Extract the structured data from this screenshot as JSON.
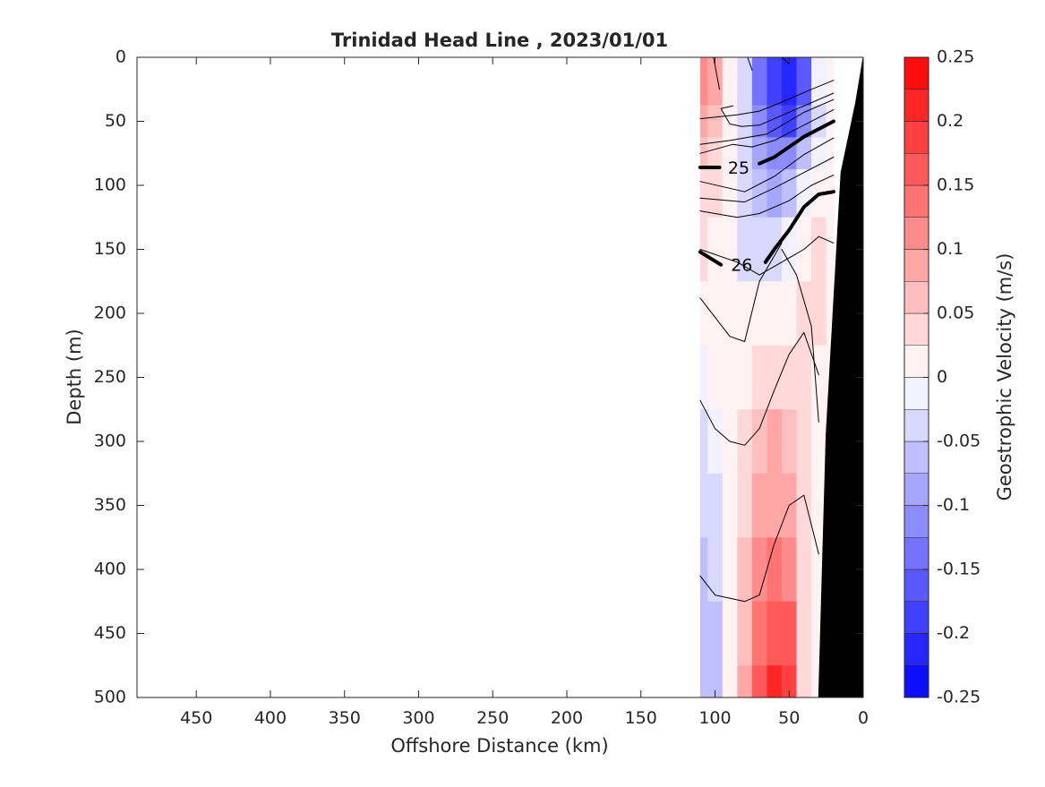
{
  "chart_data": {
    "type": "heatmap",
    "title": "Trinidad Head Line , 2023/01/01",
    "xlabel": "Offshore Distance (km)",
    "ylabel": "Depth (m)",
    "xlim": [
      490,
      0
    ],
    "ylim": [
      0,
      500
    ],
    "x_reversed": true,
    "y_reversed": true,
    "x_ticks": [
      "450",
      "400",
      "350",
      "300",
      "250",
      "200",
      "150",
      "100",
      "50",
      "0"
    ],
    "y_ticks": [
      "0",
      "50",
      "100",
      "150",
      "200",
      "250",
      "300",
      "350",
      "400",
      "450",
      "500"
    ],
    "colorbar": {
      "label": "Geostrophic Velocity (m/s)",
      "min": -0.25,
      "max": 0.25,
      "levels": 20,
      "ticks": [
        "0.25",
        "0.2",
        "0.15",
        "0.1",
        "0.05",
        "0",
        "-0.05",
        "-0.1",
        "-0.15",
        "-0.2",
        "-0.25"
      ],
      "colors": {
        "negative": "#0000ff",
        "zero": "#ffffff",
        "positive": "#ff0000"
      }
    },
    "velocity_field": {
      "x_km": [
        110,
        100,
        90,
        80,
        70,
        60,
        50,
        40,
        30,
        20
      ],
      "depth_m": [
        0,
        25,
        50,
        75,
        100,
        150,
        200,
        250,
        300,
        350,
        400,
        450,
        500
      ],
      "values": [
        [
          0.12,
          0.08,
          0.02,
          -0.05,
          -0.14,
          -0.19,
          -0.21,
          -0.16,
          -0.02,
          0.0
        ],
        [
          0.12,
          0.08,
          0.02,
          -0.05,
          -0.14,
          -0.19,
          -0.21,
          -0.16,
          -0.02,
          0.0
        ],
        [
          0.1,
          0.07,
          0.02,
          -0.04,
          -0.11,
          -0.16,
          -0.18,
          -0.11,
          -0.03,
          0.0
        ],
        [
          0.07,
          0.05,
          0.01,
          -0.04,
          -0.09,
          -0.12,
          -0.11,
          -0.06,
          -0.01,
          0.0
        ],
        [
          0.05,
          0.04,
          0.0,
          -0.04,
          -0.07,
          -0.08,
          -0.06,
          -0.02,
          0.0,
          0.0
        ],
        [
          0.03,
          0.02,
          0.0,
          -0.03,
          -0.04,
          -0.04,
          -0.02,
          0.01,
          0.03,
          0.0
        ],
        [
          0.0,
          0.0,
          0.0,
          0.0,
          0.0,
          0.01,
          0.02,
          0.03,
          0.04,
          0.0
        ],
        [
          -0.01,
          0.0,
          0.0,
          0.02,
          0.04,
          0.05,
          0.05,
          0.03,
          0.0,
          0.0
        ],
        [
          -0.03,
          -0.02,
          0.0,
          0.04,
          0.07,
          0.08,
          0.07,
          0.03,
          0.0,
          0.0
        ],
        [
          -0.05,
          -0.04,
          0.0,
          0.05,
          0.09,
          0.1,
          0.08,
          0.03,
          0.0,
          0.0
        ],
        [
          -0.06,
          -0.05,
          0.0,
          0.06,
          0.11,
          0.13,
          0.12,
          0.04,
          0.0,
          0.0
        ],
        [
          -0.06,
          -0.06,
          0.0,
          0.07,
          0.13,
          0.16,
          0.15,
          0.05,
          0.0,
          0.0
        ],
        [
          -0.07,
          -0.06,
          0.0,
          0.08,
          0.15,
          0.2,
          0.18,
          0.05,
          0.0,
          0.0
        ]
      ]
    },
    "density_contours": [
      {
        "label": "",
        "bold": false,
        "points": [
          [
            101,
            0
          ],
          [
            97,
            25
          ]
        ]
      },
      {
        "label": "",
        "bold": false,
        "points": [
          [
            78,
            0
          ],
          [
            75,
            10
          ]
        ]
      },
      {
        "label": "",
        "bold": false,
        "points": [
          [
            55,
            0
          ],
          [
            50,
            5
          ]
        ]
      },
      {
        "label": "",
        "bold": false,
        "points": [
          [
            20,
            18
          ],
          [
            35,
            25
          ],
          [
            55,
            35
          ],
          [
            70,
            42
          ],
          [
            85,
            45
          ],
          [
            110,
            48
          ]
        ]
      },
      {
        "label": "",
        "bold": false,
        "points": [
          [
            20,
            28
          ],
          [
            40,
            38
          ],
          [
            60,
            48
          ],
          [
            70,
            53
          ],
          [
            82,
            54
          ],
          [
            90,
            52
          ],
          [
            96,
            40
          ],
          [
            88,
            38
          ]
        ]
      },
      {
        "label": "",
        "bold": false,
        "points": [
          [
            20,
            33
          ],
          [
            40,
            43
          ],
          [
            65,
            60
          ],
          [
            90,
            65
          ],
          [
            110,
            68
          ]
        ]
      },
      {
        "label": "",
        "bold": false,
        "points": [
          [
            20,
            41
          ],
          [
            40,
            53
          ],
          [
            60,
            65
          ],
          [
            75,
            70
          ],
          [
            88,
            68
          ],
          [
            110,
            75
          ]
        ]
      },
      {
        "label": "25",
        "bold": true,
        "points": [
          [
            20,
            50
          ],
          [
            40,
            62
          ],
          [
            60,
            78
          ],
          [
            70,
            83
          ]
        ],
        "label_at": [
          84,
          87
        ]
      },
      {
        "label": "",
        "bold": true,
        "points": [
          [
            97,
            86
          ],
          [
            110,
            86
          ]
        ]
      },
      {
        "label": "",
        "bold": false,
        "points": [
          [
            20,
            63
          ],
          [
            40,
            76
          ],
          [
            60,
            93
          ],
          [
            80,
            105
          ],
          [
            110,
            97
          ]
        ]
      },
      {
        "label": "",
        "bold": false,
        "points": [
          [
            20,
            78
          ],
          [
            40,
            90
          ],
          [
            60,
            102
          ],
          [
            80,
            113
          ],
          [
            110,
            110
          ]
        ]
      },
      {
        "label": "",
        "bold": false,
        "points": [
          [
            20,
            92
          ],
          [
            35,
            100
          ],
          [
            50,
            112
          ],
          [
            70,
            122
          ],
          [
            85,
            125
          ],
          [
            110,
            120
          ]
        ]
      },
      {
        "label": "26",
        "bold": true,
        "points": [
          [
            20,
            105
          ],
          [
            30,
            107
          ],
          [
            40,
            117
          ],
          [
            50,
            135
          ],
          [
            60,
            150
          ],
          [
            66,
            160
          ]
        ],
        "label_at": [
          82,
          163
        ]
      },
      {
        "label": "",
        "bold": true,
        "points": [
          [
            96,
            162
          ],
          [
            110,
            152
          ]
        ]
      },
      {
        "label": "",
        "bold": false,
        "points": [
          [
            20,
            145
          ],
          [
            30,
            140
          ],
          [
            40,
            150
          ],
          [
            55,
            160
          ],
          [
            70,
            170
          ],
          [
            85,
            160
          ],
          [
            110,
            150
          ]
        ]
      },
      {
        "label": "",
        "bold": false,
        "points": [
          [
            30,
            285
          ],
          [
            35,
            210
          ],
          [
            45,
            170
          ],
          [
            55,
            150
          ]
        ]
      },
      {
        "label": "",
        "bold": false,
        "points": [
          [
            55,
            145
          ],
          [
            70,
            175
          ],
          [
            80,
            222
          ],
          [
            90,
            218
          ],
          [
            110,
            188
          ]
        ]
      },
      {
        "label": "",
        "bold": false,
        "points": [
          [
            30,
            248
          ],
          [
            40,
            215
          ],
          [
            50,
            232
          ],
          [
            60,
            260
          ],
          [
            70,
            290
          ],
          [
            80,
            303
          ],
          [
            90,
            300
          ],
          [
            100,
            290
          ],
          [
            110,
            268
          ]
        ]
      },
      {
        "label": "",
        "bold": false,
        "points": [
          [
            30,
            388
          ],
          [
            40,
            342
          ],
          [
            50,
            350
          ],
          [
            60,
            380
          ],
          [
            70,
            420
          ],
          [
            80,
            425
          ],
          [
            100,
            420
          ],
          [
            110,
            405
          ]
        ]
      }
    ],
    "bathymetry": {
      "label": "",
      "color": "#000000",
      "points": [
        [
          0,
          0
        ],
        [
          0,
          500
        ],
        [
          30,
          500
        ],
        [
          25,
          295
        ],
        [
          15,
          90
        ],
        [
          5,
          35
        ]
      ]
    }
  }
}
